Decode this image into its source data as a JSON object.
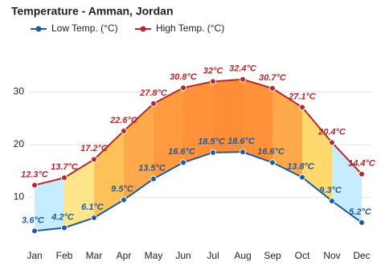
{
  "chart_data": {
    "type": "line",
    "title": "Temperature - Amman, Jordan",
    "categories": [
      "Jan",
      "Feb",
      "Mar",
      "Apr",
      "May",
      "Jun",
      "Jul",
      "Aug",
      "Sep",
      "Oct",
      "Nov",
      "Dec"
    ],
    "series": [
      {
        "name": "Low Temp. (°C)",
        "color": "#1f5b9e",
        "values": [
          3.6,
          4.2,
          6.1,
          9.5,
          13.5,
          16.6,
          18.5,
          18.6,
          16.6,
          13.8,
          9.3,
          5.2
        ],
        "value_labels": [
          "3.6°C",
          "4.2°C",
          "6.1°C",
          "9.5°C",
          "13.5°C",
          "16.6°C",
          "18.5°C",
          "18.6°C",
          "16.6°C",
          "13.8°C",
          "9.3°C",
          "5.2°C"
        ]
      },
      {
        "name": "High Temp. (°C)",
        "color": "#b5282b",
        "values": [
          12.3,
          13.7,
          17.2,
          22.6,
          27.8,
          30.8,
          32,
          32.4,
          30.7,
          27.1,
          20.4,
          14.4
        ],
        "value_labels": [
          "12.3°C",
          "13.7°C",
          "17.2°C",
          "22.6°C",
          "27.8°C",
          "30.8°C",
          "32°C",
          "32.4°C",
          "30.7°C",
          "27.1°C",
          "20.4°C",
          "14.4°C"
        ]
      }
    ],
    "fill_colors": [
      "#c6ecff",
      "#ffe58a",
      "#ffc25a",
      "#ffa94d",
      "#ff9a40",
      "#ff923a",
      "#ff8c36",
      "#ff923a",
      "#ffa94d",
      "#ffd86e",
      "#c6ecff"
    ],
    "ylim": [
      0,
      40
    ],
    "yticks": [
      10,
      20,
      30
    ],
    "grid": true
  }
}
